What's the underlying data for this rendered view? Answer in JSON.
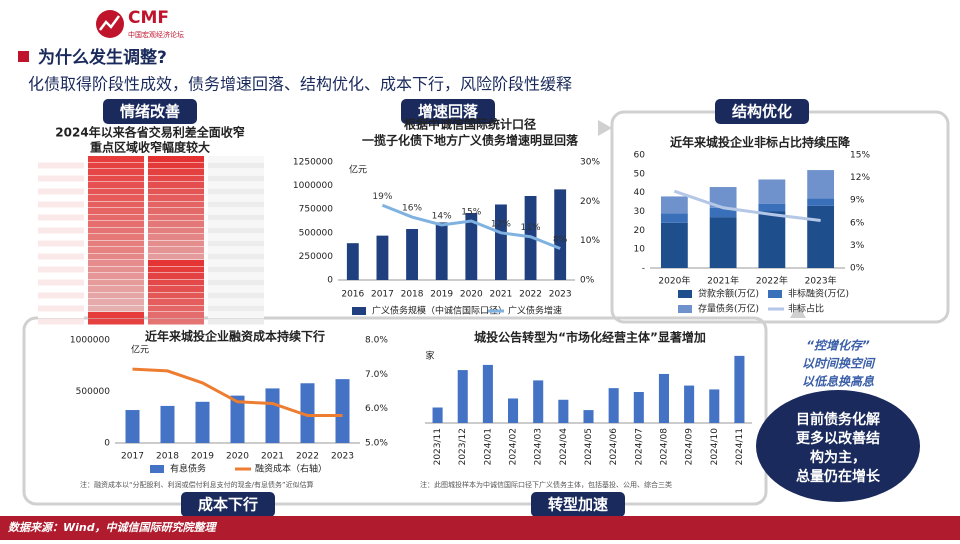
{
  "logo": {
    "name": "CMF",
    "cn": "中国宏观经济论坛"
  },
  "headline": "为什么发生调整?",
  "subtitle": "化债取得阶段性成效，债务增速回落、结构优化、成本下行，风险阶段性缓释",
  "tabs": [
    "情绪改善",
    "增速回落",
    "结构优化",
    "成本下行",
    "转型加速"
  ],
  "heat_panel": {
    "title": [
      "2024年以来各省交易利差全面收窄",
      "重点区域收窄幅度较大"
    ]
  },
  "callout": {
    "quote": [
      "“控增化存”",
      "以时间换空间",
      "以低息换高息"
    ],
    "circle": [
      "目前债务化解",
      "更多以改善结",
      "构为主，",
      "总量仍在增长"
    ]
  },
  "source": "数据来源：Wind，中诚信国际研究院整理",
  "chart_data": [
    {
      "type": "combo",
      "title": [
        "根据中诚信国际统计口径",
        "一揽子化债下地方广义债务增速明显回落"
      ],
      "unit": "亿元",
      "categories": [
        "2016",
        "2017",
        "2018",
        "2019",
        "2020",
        "2021",
        "2022",
        "2023"
      ],
      "series": [
        {
          "name": "广义债务规模（中诚信国际口径）",
          "kind": "bar",
          "color": "#1f3f7f",
          "values": [
            390000,
            470000,
            540000,
            610000,
            710000,
            800000,
            890000,
            960000
          ]
        },
        {
          "name": "广义债务增速",
          "kind": "line",
          "axis": "y2",
          "color": "#7fb2e0",
          "values": [
            null,
            19,
            16,
            14,
            15,
            12,
            11,
            8
          ],
          "value_labels": [
            null,
            "19%",
            "16%",
            "14%",
            "15%",
            "12%",
            "11%",
            "8%"
          ]
        }
      ],
      "ylim": [
        0,
        1250000
      ],
      "yticks": [
        0,
        250000,
        500000,
        750000,
        1000000,
        1250000
      ],
      "y2lim": [
        0,
        30
      ],
      "y2ticks": [
        {
          "value": 0,
          "label": "0%"
        },
        {
          "value": 10,
          "label": "10%"
        },
        {
          "value": 20,
          "label": "20%"
        },
        {
          "value": 30,
          "label": "30%"
        }
      ]
    },
    {
      "type": "combo",
      "title": [
        "近年来城投企业非标占比持续压降"
      ],
      "stacked": true,
      "categories": [
        "2020年",
        "2021年",
        "2022年",
        "2023年"
      ],
      "series": [
        {
          "name": "贷款余额(万亿)",
          "kind": "bar",
          "color": "#1f4e8c",
          "values": [
            24,
            27,
            30,
            33
          ]
        },
        {
          "name": "非标融资(万亿)",
          "kind": "bar",
          "color": "#3a6fba",
          "values": [
            5,
            5,
            4,
            4
          ]
        },
        {
          "name": "存量债务(万亿)",
          "kind": "bar",
          "color": "#6f92cc",
          "values": [
            9,
            11,
            13,
            15
          ]
        },
        {
          "name": "非标占比",
          "kind": "line",
          "axis": "y2",
          "color": "#b4c7e7",
          "values": [
            10.2,
            8.0,
            7.1,
            6.3
          ]
        }
      ],
      "ylim": [
        0,
        60
      ],
      "yticks": [
        {
          "value": 0,
          "label": "-"
        },
        10,
        20,
        30,
        40,
        50,
        60
      ],
      "y2lim": [
        0,
        15
      ],
      "y2ticks": [
        {
          "value": 0,
          "label": "0%"
        },
        {
          "value": 3,
          "label": "3%"
        },
        {
          "value": 6,
          "label": "6%"
        },
        {
          "value": 9,
          "label": "9%"
        },
        {
          "value": 12,
          "label": "12%"
        },
        {
          "value": 15,
          "label": "15%"
        }
      ]
    },
    {
      "type": "combo",
      "title": [
        "近年来城投企业融资成本持续下行"
      ],
      "unit": "亿元",
      "categories": [
        "2017",
        "2018",
        "2019",
        "2020",
        "2021",
        "2022",
        "2023"
      ],
      "series": [
        {
          "name": "有息债务",
          "kind": "bar",
          "color": "#4472c4",
          "values": [
            320000,
            360000,
            400000,
            460000,
            530000,
            580000,
            620000
          ]
        },
        {
          "name": "融资成本（右轴）",
          "kind": "line",
          "axis": "y2",
          "color": "#ed7d31",
          "values": [
            7.15,
            7.1,
            6.75,
            6.2,
            6.15,
            5.8,
            5.8
          ]
        }
      ],
      "ylim": [
        0,
        1000000
      ],
      "yticks": [
        0,
        500000,
        1000000
      ],
      "y2lim": [
        5,
        8
      ],
      "y2ticks": [
        {
          "value": 5,
          "label": "5.0%"
        },
        {
          "value": 6,
          "label": "6.0%"
        },
        {
          "value": 7,
          "label": "7.0%"
        },
        {
          "value": 8,
          "label": "8.0%"
        }
      ],
      "note": "注：融资成本以“分配股利、利润或偿付利息支付的现金/有息债务”近似估算"
    },
    {
      "type": "bar",
      "title": [
        "城投公告转型为“市场化经营主体”显著增加"
      ],
      "unit": "家",
      "categories": [
        "2023/11",
        "2023/12",
        "2024/01",
        "2024/02",
        "2024/03",
        "2024/04",
        "2024/05",
        "2024/06",
        "2024/07",
        "2024/08",
        "2024/09",
        "2024/10",
        "2024/11"
      ],
      "series": [
        {
          "name": "转型主体数量",
          "kind": "bar",
          "color": "#4472c4",
          "values": [
            12,
            41,
            45,
            19,
            33,
            18,
            10,
            27,
            24,
            38,
            29,
            26,
            52
          ]
        }
      ],
      "ylim": [
        0,
        55
      ],
      "legend": false,
      "note": "注：此图城投样本为中诚信国际口径下广义债务主体，包括基投、公用、综合三类"
    }
  ]
}
